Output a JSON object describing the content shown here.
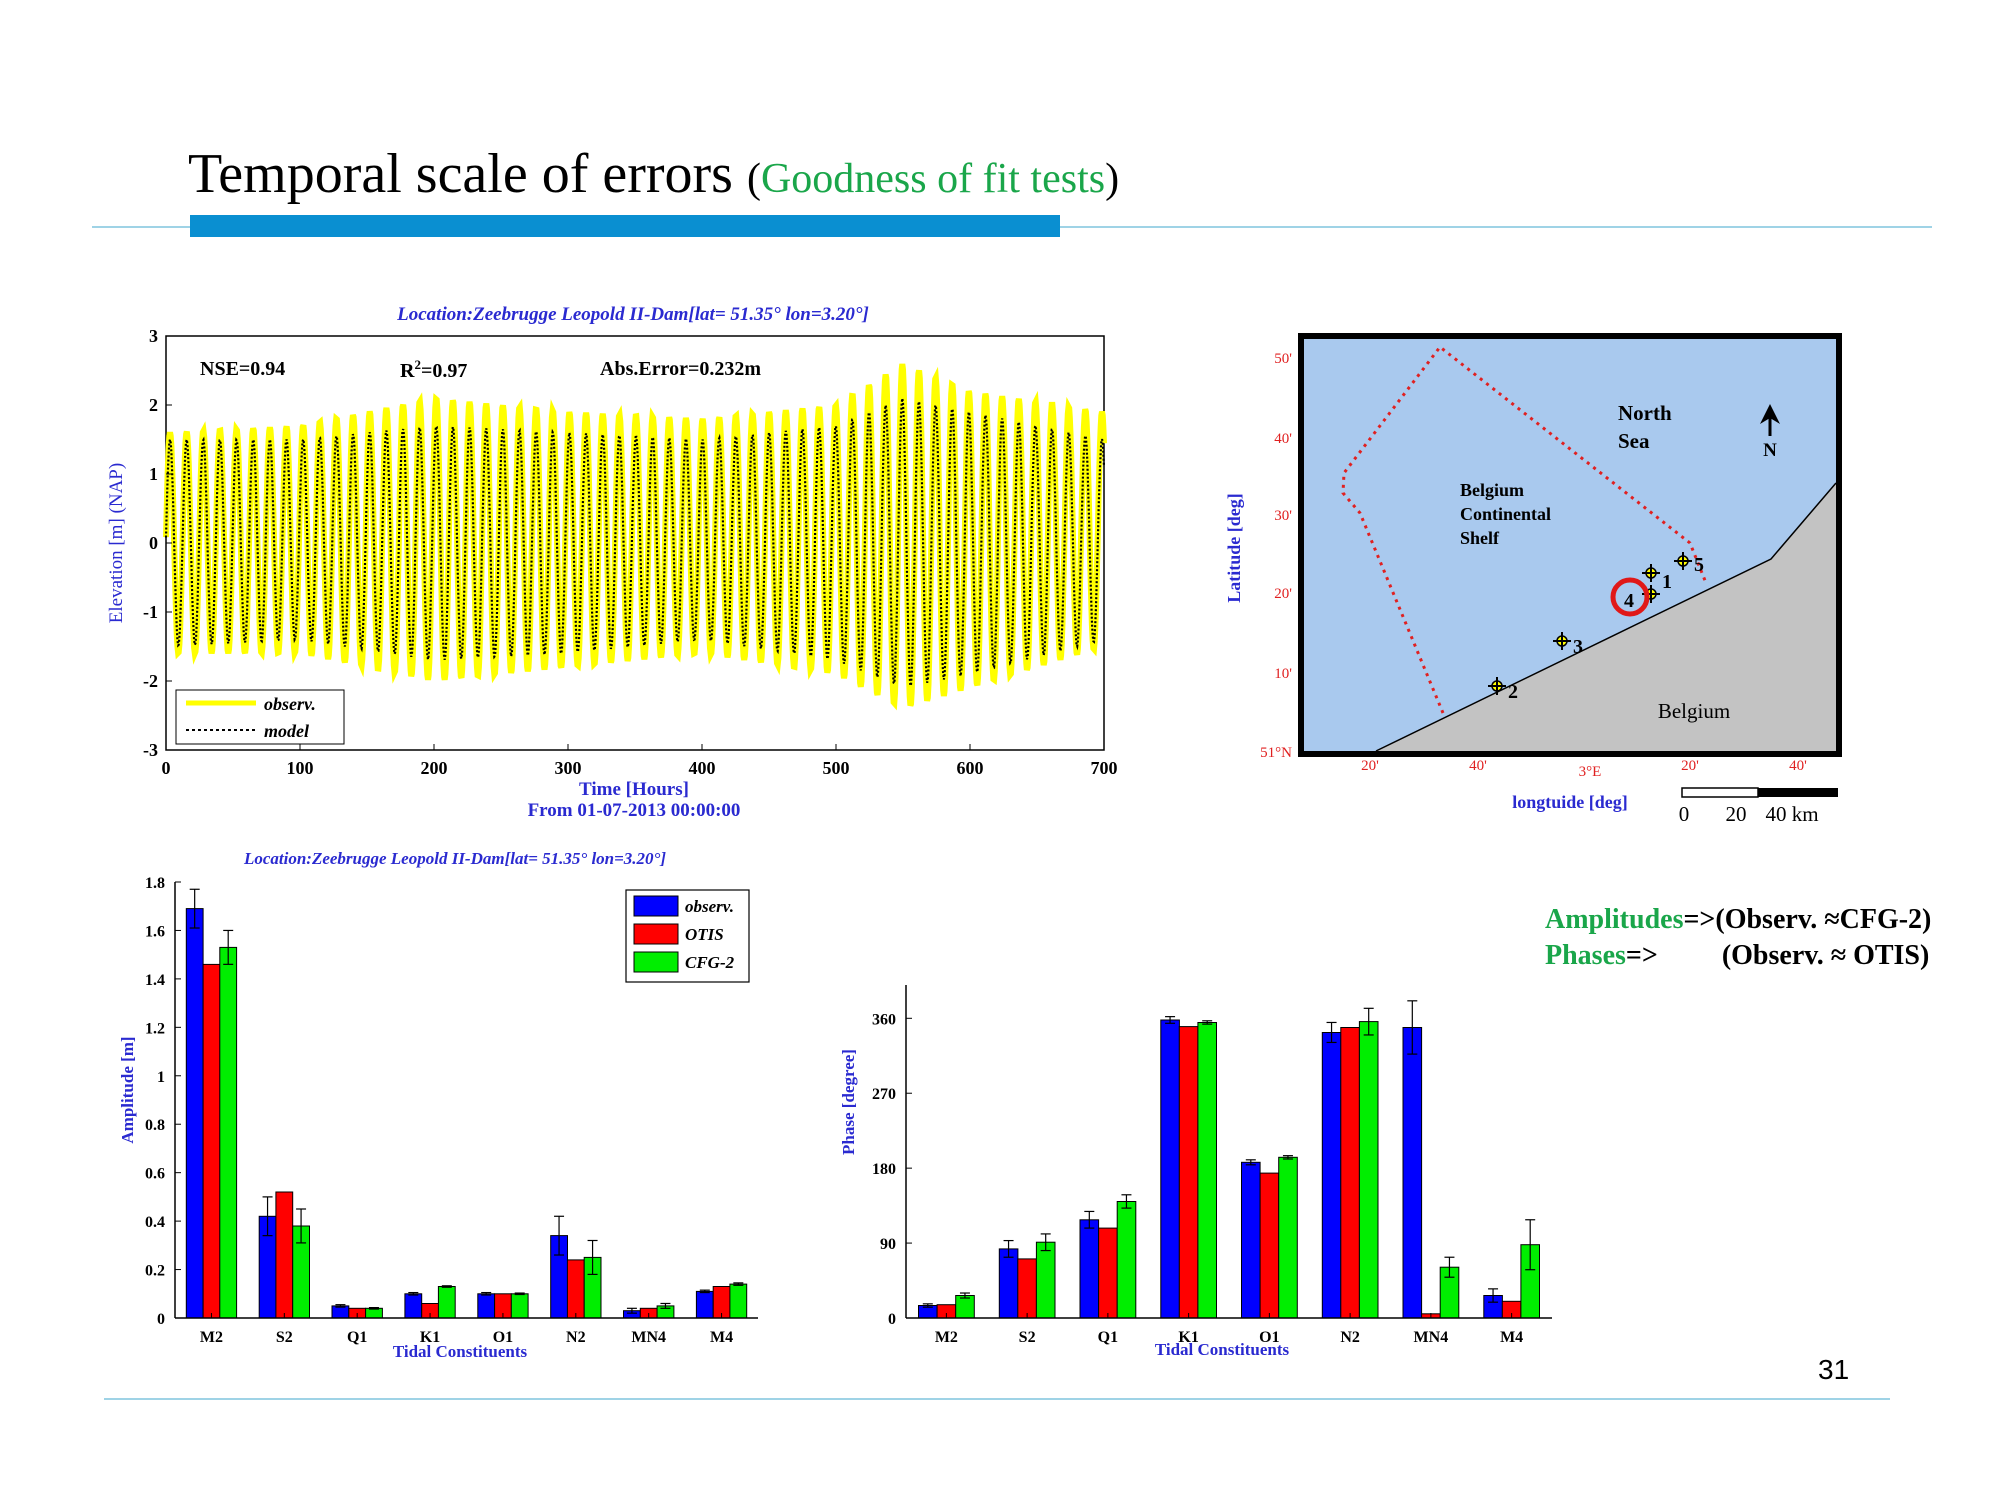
{
  "slide": {
    "title_main": "Temporal scale of errors",
    "title_paren_open": "(",
    "title_sub": "Goodness of fit tests",
    "title_paren_close": ")",
    "page_number": "31",
    "note_amplitudes_label": "Amplitudes",
    "note_amplitudes_text": "=>(Observ. ≈CFG-2)",
    "note_phases_label": "Phases",
    "note_phases_arrow": "=>",
    "note_phases_text": "(Observ. ≈ OTIS)"
  },
  "map": {
    "ylabel": "Latitude [deg]",
    "xlabel": "longtuide [deg]",
    "lat_ticks": [
      "50'",
      "40'",
      "30'",
      "20'",
      "10'",
      "51°N"
    ],
    "lon_ticks": [
      "20'",
      "40'",
      "3°E",
      "20'",
      "40'"
    ],
    "sea_label_1": "North",
    "sea_label_2": "Sea",
    "north_label": "N",
    "shelf_label_1": "Belgium",
    "shelf_label_2": "Continental",
    "shelf_label_3": "Shelf",
    "land_label": "Belgium",
    "stations": [
      "1",
      "2",
      "3",
      "4",
      "5"
    ],
    "scale_labels": [
      "0",
      "20",
      "40 km"
    ],
    "colors": {
      "sea": "#a9c9ee",
      "land": "#c3c3c3",
      "boundary": "#e02020",
      "highlight": "#e01818"
    }
  },
  "chart_data": [
    {
      "type": "line",
      "title": "Location:Zeebrugge Leopold II-Dam[lat= 51.35° lon=3.20°]",
      "xlabel": "Time [Hours]",
      "xlabel2": "From 01-07-2013 00:00:00",
      "ylabel": "Elevation [m] (NAP)",
      "xlim": [
        0,
        700
      ],
      "ylim": [
        -3,
        3
      ],
      "xticks": [
        0,
        100,
        200,
        300,
        400,
        500,
        600,
        700
      ],
      "yticks": [
        -3,
        -2,
        -1,
        0,
        1,
        2,
        3
      ],
      "stats": {
        "nse": "NSE=0.94",
        "r2_base": "R",
        "r2_sup": "2",
        "r2_val": "=0.97",
        "abs_error": "Abs.Error=0.232m"
      },
      "series": [
        {
          "name": "observ.",
          "color": "#ffff00",
          "style": "solid",
          "period_hours": 12.42,
          "mean": 0.0,
          "envelope_hours": [
            0,
            100,
            200,
            300,
            400,
            500,
            550,
            600,
            700
          ],
          "high_water": [
            1.6,
            1.7,
            2.1,
            1.9,
            1.8,
            2.0,
            2.6,
            2.2,
            1.9
          ],
          "low_water": [
            -1.6,
            -1.6,
            -2.0,
            -1.8,
            -1.6,
            -1.9,
            -2.4,
            -2.1,
            -1.5
          ]
        },
        {
          "name": "model",
          "color": "#000000",
          "style": "dotted",
          "period_hours": 12.42,
          "mean": 0.0,
          "envelope_hours": [
            0,
            100,
            200,
            300,
            400,
            500,
            550,
            600,
            700
          ],
          "high_water": [
            1.5,
            1.5,
            1.7,
            1.6,
            1.5,
            1.7,
            2.1,
            1.9,
            1.5
          ],
          "low_water": [
            -1.5,
            -1.4,
            -1.7,
            -1.6,
            -1.4,
            -1.7,
            -2.1,
            -1.9,
            -1.4
          ]
        }
      ]
    },
    {
      "type": "bar",
      "title": "Location:Zeebrugge Leopold II-Dam[lat= 51.35° lon=3.20°]",
      "xlabel": "Tidal Constituents",
      "ylabel": "Amplitude [m]",
      "ylim": [
        0,
        1.8
      ],
      "yticks": [
        "0",
        "0.2",
        "0.4",
        "0.6",
        "0.8",
        "1",
        "1.2",
        "1.4",
        "1.6",
        "1.8"
      ],
      "legend_position": "top-right",
      "categories": [
        "M2",
        "S2",
        "Q1",
        "K1",
        "O1",
        "N2",
        "MN4",
        "M4"
      ],
      "series": [
        {
          "name": "observ.",
          "color": "#0000ff",
          "values": [
            1.69,
            0.42,
            0.05,
            0.1,
            0.1,
            0.34,
            0.03,
            0.11
          ],
          "errors": [
            0.08,
            0.08,
            0.005,
            0.005,
            0.005,
            0.08,
            0.01,
            0.005
          ]
        },
        {
          "name": "OTIS",
          "color": "#ff0000",
          "values": [
            1.46,
            0.52,
            0.04,
            0.06,
            0.1,
            0.24,
            0.04,
            0.13
          ],
          "errors": [
            0,
            0,
            0,
            0,
            0,
            0,
            0,
            0
          ]
        },
        {
          "name": "CFG-2",
          "color": "#00ee00",
          "values": [
            1.53,
            0.38,
            0.04,
            0.13,
            0.1,
            0.25,
            0.05,
            0.14
          ],
          "errors": [
            0.07,
            0.07,
            0.003,
            0.003,
            0.003,
            0.07,
            0.01,
            0.005
          ]
        }
      ]
    },
    {
      "type": "bar",
      "title": "",
      "xlabel": "Tidal Constituents",
      "ylabel": "Phase [degree]",
      "ylim": [
        0,
        400
      ],
      "yticks": [
        "0",
        "90",
        "180",
        "270",
        "360"
      ],
      "categories": [
        "M2",
        "S2",
        "Q1",
        "K1",
        "O1",
        "N2",
        "MN4",
        "M4"
      ],
      "series": [
        {
          "name": "observ.",
          "color": "#0000ff",
          "values": [
            15,
            83,
            118,
            358,
            187,
            343,
            349,
            27
          ],
          "errors": [
            2,
            10,
            10,
            4,
            3,
            12,
            32,
            8
          ]
        },
        {
          "name": "OTIS",
          "color": "#ff0000",
          "values": [
            16,
            71,
            108,
            350,
            174,
            349,
            5,
            20
          ],
          "errors": [
            0,
            0,
            0,
            0,
            0,
            0,
            0,
            0
          ]
        },
        {
          "name": "CFG-2",
          "color": "#00ee00",
          "values": [
            27,
            91,
            140,
            355,
            193,
            356,
            61,
            88
          ],
          "errors": [
            3,
            10,
            8,
            2,
            2,
            16,
            12,
            30
          ]
        }
      ]
    }
  ]
}
